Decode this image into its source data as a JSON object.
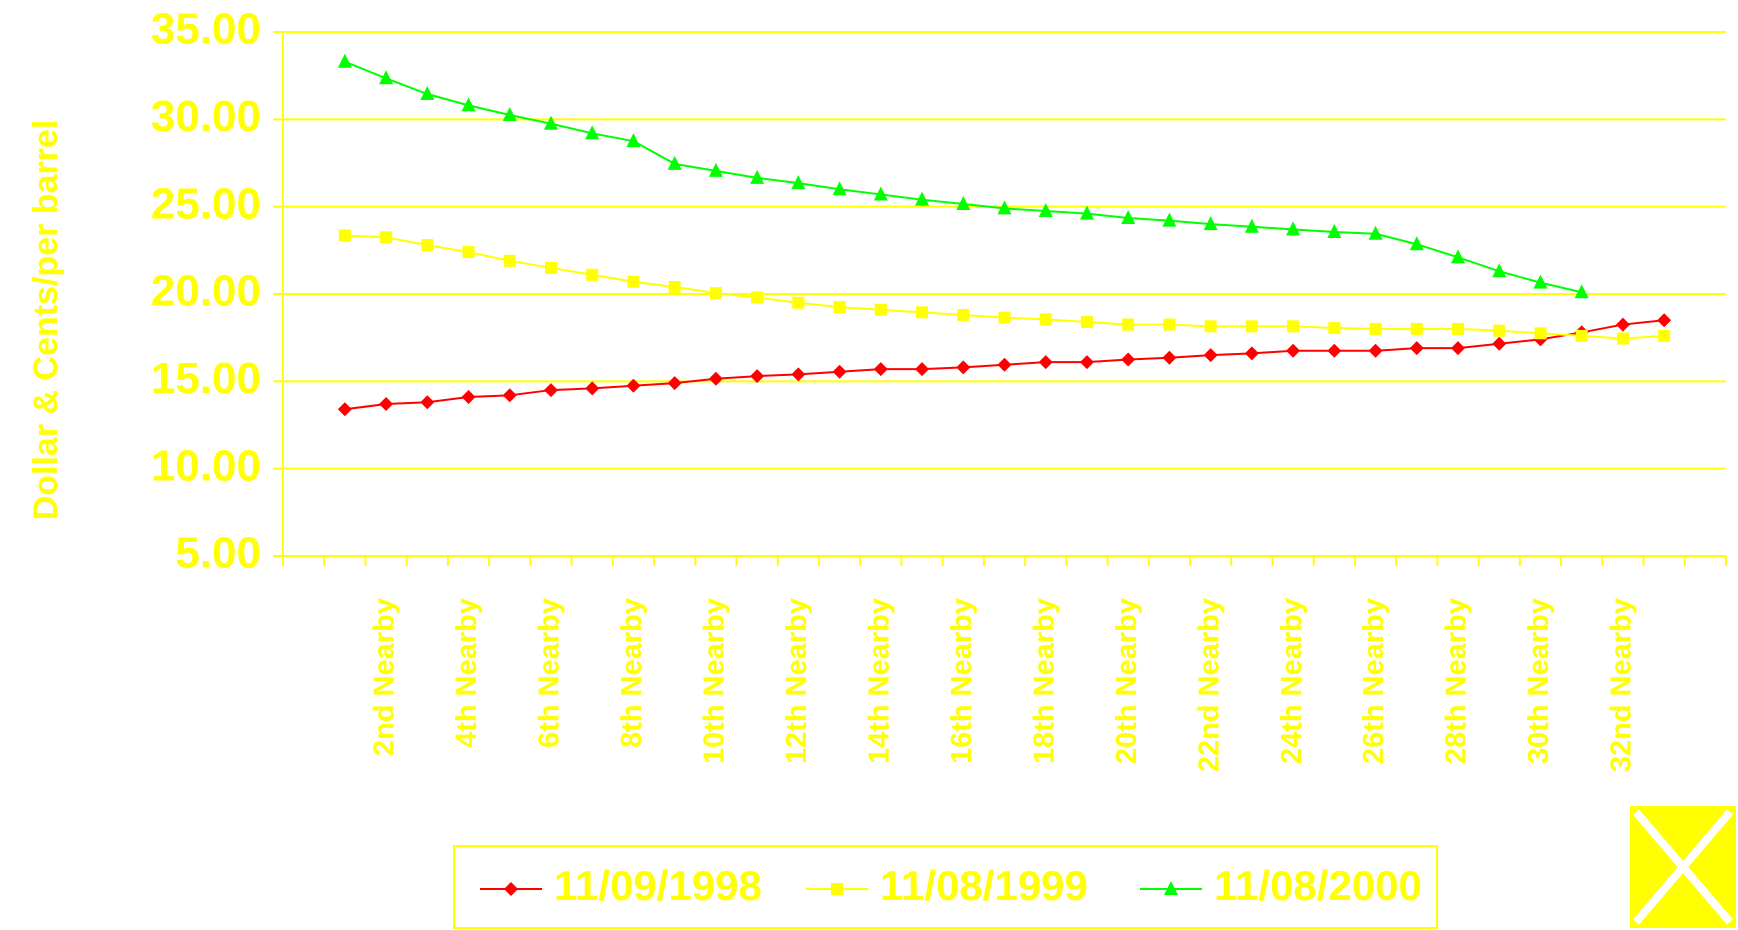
{
  "chart_data": {
    "type": "line",
    "ylabel": "Dollar & Cents/per barrel",
    "categories": [
      null,
      null,
      "2nd Nearby",
      null,
      "4th Nearby",
      null,
      "6th Nearby",
      null,
      "8th Nearby",
      null,
      "10th Nearby",
      null,
      "12th Nearby",
      null,
      "14th Nearby",
      null,
      "16th Nearby",
      null,
      "18th Nearby",
      null,
      "20th Nearby",
      null,
      "22nd Nearby",
      null,
      "24th Nearby",
      null,
      "26th Nearby",
      null,
      "28th Nearby",
      null,
      "30th Nearby",
      null,
      "32nd Nearby",
      null,
      null
    ],
    "series": [
      {
        "name": "11/09/1998",
        "color": "#ff0000",
        "marker": "diamond",
        "values": [
          null,
          13.4,
          13.7,
          13.8,
          14.1,
          14.2,
          14.5,
          14.6,
          14.75,
          14.9,
          15.15,
          15.3,
          15.4,
          15.55,
          15.7,
          15.7,
          15.8,
          15.95,
          16.1,
          16.1,
          16.25,
          16.35,
          16.5,
          16.6,
          16.75,
          16.75,
          16.75,
          16.9,
          16.9,
          17.15,
          17.4,
          17.8,
          18.25,
          18.5,
          null
        ]
      },
      {
        "name": "11/08/1999",
        "color": "#ffff00",
        "marker": "square",
        "values": [
          null,
          23.35,
          23.25,
          22.8,
          22.4,
          21.9,
          21.5,
          21.1,
          20.7,
          20.4,
          20.05,
          19.8,
          19.5,
          19.25,
          19.1,
          18.95,
          18.8,
          18.65,
          18.55,
          18.4,
          18.25,
          18.25,
          18.15,
          18.15,
          18.15,
          18.05,
          18.0,
          18.0,
          18.0,
          17.9,
          17.75,
          17.6,
          17.45,
          17.6,
          null
        ]
      },
      {
        "name": "11/08/2000",
        "color": "#00ff00",
        "marker": "triangle",
        "values": [
          null,
          33.3,
          32.35,
          31.45,
          30.8,
          30.25,
          29.75,
          29.2,
          28.75,
          27.45,
          27.05,
          26.65,
          26.35,
          26.0,
          25.7,
          25.4,
          25.15,
          24.9,
          24.75,
          24.6,
          24.35,
          24.2,
          24.0,
          23.85,
          23.7,
          23.55,
          23.45,
          22.85,
          22.1,
          21.3,
          20.65,
          20.1,
          null,
          null,
          null
        ]
      }
    ],
    "ylim": [
      5,
      35
    ],
    "yticks": [
      {
        "value": 5,
        "label": "5.00"
      },
      {
        "value": 10,
        "label": "10.00"
      },
      {
        "value": 15,
        "label": "15.00"
      },
      {
        "value": 20,
        "label": "20.00"
      },
      {
        "value": 25,
        "label": "25.00"
      },
      {
        "value": 30,
        "label": "30.00"
      },
      {
        "value": 35,
        "label": "35.00"
      }
    ],
    "grid": true,
    "text_color": "#ffff00",
    "grid_color": "#ffff00",
    "legend": "bottom"
  }
}
